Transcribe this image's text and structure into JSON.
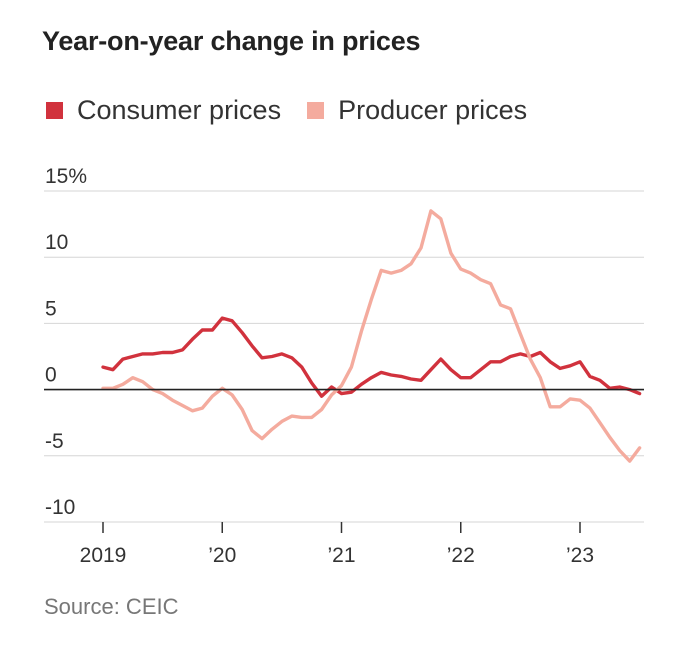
{
  "chart_data": {
    "type": "line",
    "title": "Year-on-year change in prices",
    "xlabel": "",
    "ylabel": "",
    "xlim": [
      2019.0,
      2023.5
    ],
    "ylim": [
      -10,
      15
    ],
    "y_ticks": [
      {
        "value": 15,
        "label": "15%"
      },
      {
        "value": 10,
        "label": "10"
      },
      {
        "value": 5,
        "label": "5"
      },
      {
        "value": 0,
        "label": "0"
      },
      {
        "value": -5,
        "label": "-5"
      },
      {
        "value": -10,
        "label": "-10"
      }
    ],
    "x_ticks": [
      {
        "value": 2019,
        "label": "2019"
      },
      {
        "value": 2020,
        "label": "’20"
      },
      {
        "value": 2021,
        "label": "’21"
      },
      {
        "value": 2022,
        "label": "’22"
      },
      {
        "value": 2023,
        "label": "’23"
      }
    ],
    "grid": true,
    "legend_position": "top-left",
    "series": [
      {
        "name": "Consumer prices",
        "color": "#d1323d",
        "points": [
          [
            2019.0,
            1.7
          ],
          [
            2019.083,
            1.5
          ],
          [
            2019.167,
            2.3
          ],
          [
            2019.25,
            2.5
          ],
          [
            2019.333,
            2.7
          ],
          [
            2019.417,
            2.7
          ],
          [
            2019.5,
            2.8
          ],
          [
            2019.583,
            2.8
          ],
          [
            2019.667,
            3.0
          ],
          [
            2019.75,
            3.8
          ],
          [
            2019.833,
            4.5
          ],
          [
            2019.917,
            4.5
          ],
          [
            2020.0,
            5.4
          ],
          [
            2020.083,
            5.2
          ],
          [
            2020.167,
            4.3
          ],
          [
            2020.25,
            3.3
          ],
          [
            2020.333,
            2.4
          ],
          [
            2020.417,
            2.5
          ],
          [
            2020.5,
            2.7
          ],
          [
            2020.583,
            2.4
          ],
          [
            2020.667,
            1.7
          ],
          [
            2020.75,
            0.5
          ],
          [
            2020.833,
            -0.5
          ],
          [
            2020.917,
            0.2
          ],
          [
            2021.0,
            -0.3
          ],
          [
            2021.083,
            -0.2
          ],
          [
            2021.167,
            0.4
          ],
          [
            2021.25,
            0.9
          ],
          [
            2021.333,
            1.3
          ],
          [
            2021.417,
            1.1
          ],
          [
            2021.5,
            1.0
          ],
          [
            2021.583,
            0.8
          ],
          [
            2021.667,
            0.7
          ],
          [
            2021.75,
            1.5
          ],
          [
            2021.833,
            2.3
          ],
          [
            2021.917,
            1.5
          ],
          [
            2022.0,
            0.9
          ],
          [
            2022.083,
            0.9
          ],
          [
            2022.167,
            1.5
          ],
          [
            2022.25,
            2.1
          ],
          [
            2022.333,
            2.1
          ],
          [
            2022.417,
            2.5
          ],
          [
            2022.5,
            2.7
          ],
          [
            2022.583,
            2.5
          ],
          [
            2022.667,
            2.8
          ],
          [
            2022.75,
            2.1
          ],
          [
            2022.833,
            1.6
          ],
          [
            2022.917,
            1.8
          ],
          [
            2023.0,
            2.1
          ],
          [
            2023.083,
            1.0
          ],
          [
            2023.167,
            0.7
          ],
          [
            2023.25,
            0.1
          ],
          [
            2023.333,
            0.2
          ],
          [
            2023.417,
            0.0
          ],
          [
            2023.5,
            -0.3
          ]
        ]
      },
      {
        "name": "Producer prices",
        "color": "#f4ab9e",
        "points": [
          [
            2019.0,
            0.1
          ],
          [
            2019.083,
            0.1
          ],
          [
            2019.167,
            0.4
          ],
          [
            2019.25,
            0.9
          ],
          [
            2019.333,
            0.6
          ],
          [
            2019.417,
            0.0
          ],
          [
            2019.5,
            -0.3
          ],
          [
            2019.583,
            -0.8
          ],
          [
            2019.667,
            -1.2
          ],
          [
            2019.75,
            -1.6
          ],
          [
            2019.833,
            -1.4
          ],
          [
            2019.917,
            -0.5
          ],
          [
            2020.0,
            0.1
          ],
          [
            2020.083,
            -0.4
          ],
          [
            2020.167,
            -1.5
          ],
          [
            2020.25,
            -3.1
          ],
          [
            2020.333,
            -3.7
          ],
          [
            2020.417,
            -3.0
          ],
          [
            2020.5,
            -2.4
          ],
          [
            2020.583,
            -2.0
          ],
          [
            2020.667,
            -2.1
          ],
          [
            2020.75,
            -2.1
          ],
          [
            2020.833,
            -1.5
          ],
          [
            2020.917,
            -0.4
          ],
          [
            2021.0,
            0.3
          ],
          [
            2021.083,
            1.7
          ],
          [
            2021.167,
            4.4
          ],
          [
            2021.25,
            6.8
          ],
          [
            2021.333,
            9.0
          ],
          [
            2021.417,
            8.8
          ],
          [
            2021.5,
            9.0
          ],
          [
            2021.583,
            9.5
          ],
          [
            2021.667,
            10.7
          ],
          [
            2021.75,
            13.5
          ],
          [
            2021.833,
            12.9
          ],
          [
            2021.917,
            10.3
          ],
          [
            2022.0,
            9.1
          ],
          [
            2022.083,
            8.8
          ],
          [
            2022.167,
            8.3
          ],
          [
            2022.25,
            8.0
          ],
          [
            2022.333,
            6.4
          ],
          [
            2022.417,
            6.1
          ],
          [
            2022.5,
            4.2
          ],
          [
            2022.583,
            2.3
          ],
          [
            2022.667,
            0.9
          ],
          [
            2022.75,
            -1.3
          ],
          [
            2022.833,
            -1.3
          ],
          [
            2022.917,
            -0.7
          ],
          [
            2023.0,
            -0.8
          ],
          [
            2023.083,
            -1.4
          ],
          [
            2023.167,
            -2.5
          ],
          [
            2023.25,
            -3.6
          ],
          [
            2023.333,
            -4.6
          ],
          [
            2023.417,
            -5.4
          ],
          [
            2023.5,
            -4.4
          ]
        ]
      }
    ]
  },
  "source": "Source: CEIC"
}
